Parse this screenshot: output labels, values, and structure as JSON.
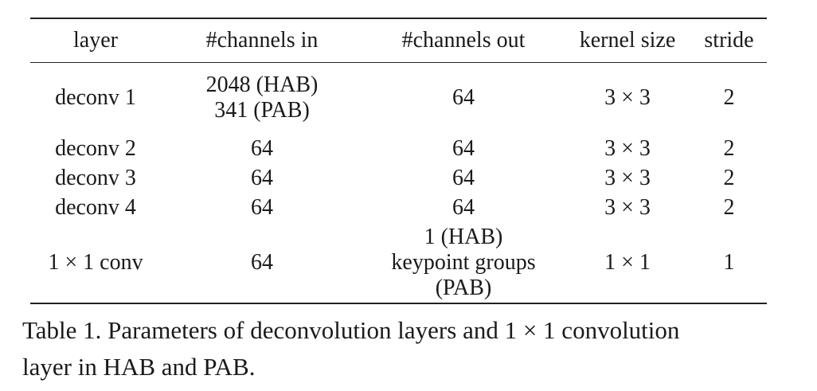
{
  "table": {
    "headers": [
      "layer",
      "#channels in",
      "#channels out",
      "kernel size",
      "stride"
    ],
    "rows": [
      {
        "layer": [
          "deconv 1"
        ],
        "in": [
          "2048 (HAB)",
          "341 (PAB)"
        ],
        "out": [
          "64"
        ],
        "kernel": [
          "3 × 3"
        ],
        "stride": [
          "2"
        ]
      },
      {
        "layer": [
          "deconv 2"
        ],
        "in": [
          "64"
        ],
        "out": [
          "64"
        ],
        "kernel": [
          "3 × 3"
        ],
        "stride": [
          "2"
        ]
      },
      {
        "layer": [
          "deconv 3"
        ],
        "in": [
          "64"
        ],
        "out": [
          "64"
        ],
        "kernel": [
          "3 × 3"
        ],
        "stride": [
          "2"
        ]
      },
      {
        "layer": [
          "deconv 4"
        ],
        "in": [
          "64"
        ],
        "out": [
          "64"
        ],
        "kernel": [
          "3 × 3"
        ],
        "stride": [
          "2"
        ]
      },
      {
        "layer": [
          "1 × 1 conv"
        ],
        "in": [
          "64"
        ],
        "out": [
          "1 (HAB)",
          "keypoint groups (PAB)"
        ],
        "kernel": [
          "1 × 1"
        ],
        "stride": [
          "1"
        ]
      }
    ]
  },
  "caption": {
    "line1": "Table 1. Parameters of deconvolution layers and 1 × 1 convolution",
    "line2": "layer in HAB and PAB."
  }
}
